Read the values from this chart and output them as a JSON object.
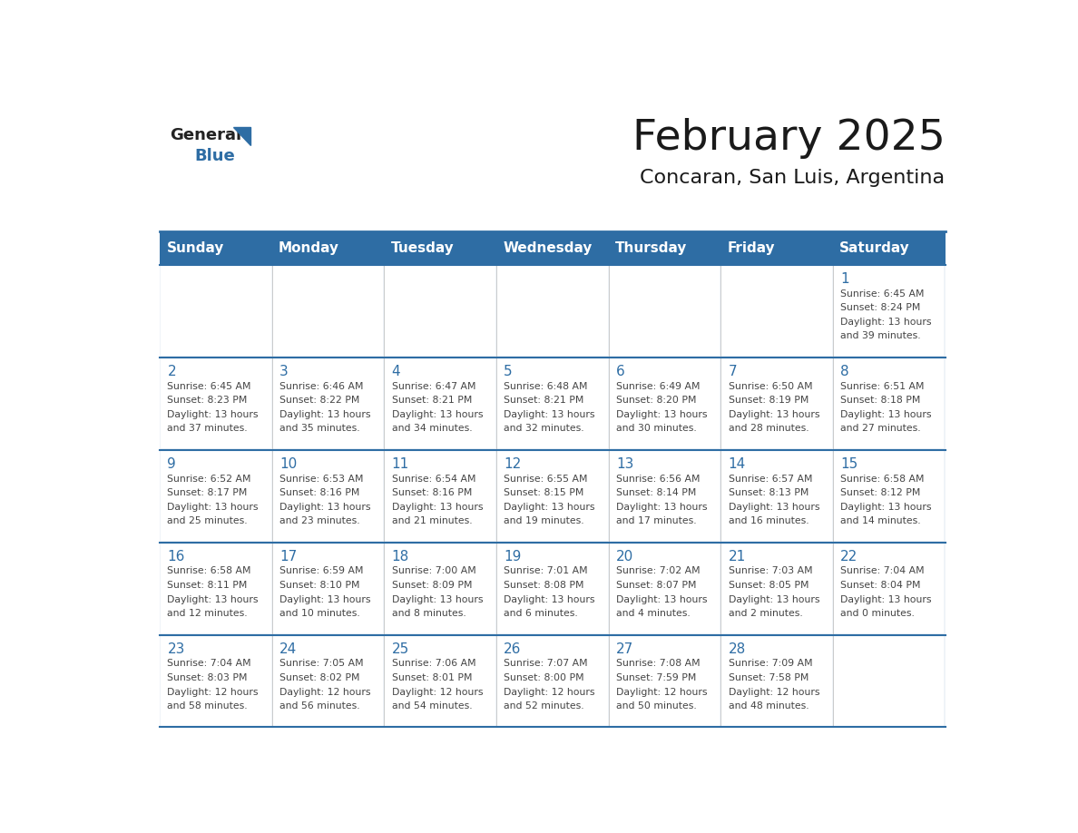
{
  "title": "February 2025",
  "subtitle": "Concaran, San Luis, Argentina",
  "days_of_week": [
    "Sunday",
    "Monday",
    "Tuesday",
    "Wednesday",
    "Thursday",
    "Friday",
    "Saturday"
  ],
  "header_bg": "#2e6da4",
  "header_text": "#ffffff",
  "border_color": "#2e6da4",
  "text_color": "#444444",
  "day_number_color": "#2e6da4",
  "logo_general_color": "#222222",
  "logo_blue_color": "#2e6da4",
  "calendar_data": [
    [
      null,
      null,
      null,
      null,
      null,
      null,
      {
        "day": 1,
        "sunrise": "6:45 AM",
        "sunset": "8:24 PM",
        "daylight": "13 hours and 39 minutes."
      }
    ],
    [
      {
        "day": 2,
        "sunrise": "6:45 AM",
        "sunset": "8:23 PM",
        "daylight": "13 hours and 37 minutes."
      },
      {
        "day": 3,
        "sunrise": "6:46 AM",
        "sunset": "8:22 PM",
        "daylight": "13 hours and 35 minutes."
      },
      {
        "day": 4,
        "sunrise": "6:47 AM",
        "sunset": "8:21 PM",
        "daylight": "13 hours and 34 minutes."
      },
      {
        "day": 5,
        "sunrise": "6:48 AM",
        "sunset": "8:21 PM",
        "daylight": "13 hours and 32 minutes."
      },
      {
        "day": 6,
        "sunrise": "6:49 AM",
        "sunset": "8:20 PM",
        "daylight": "13 hours and 30 minutes."
      },
      {
        "day": 7,
        "sunrise": "6:50 AM",
        "sunset": "8:19 PM",
        "daylight": "13 hours and 28 minutes."
      },
      {
        "day": 8,
        "sunrise": "6:51 AM",
        "sunset": "8:18 PM",
        "daylight": "13 hours and 27 minutes."
      }
    ],
    [
      {
        "day": 9,
        "sunrise": "6:52 AM",
        "sunset": "8:17 PM",
        "daylight": "13 hours and 25 minutes."
      },
      {
        "day": 10,
        "sunrise": "6:53 AM",
        "sunset": "8:16 PM",
        "daylight": "13 hours and 23 minutes."
      },
      {
        "day": 11,
        "sunrise": "6:54 AM",
        "sunset": "8:16 PM",
        "daylight": "13 hours and 21 minutes."
      },
      {
        "day": 12,
        "sunrise": "6:55 AM",
        "sunset": "8:15 PM",
        "daylight": "13 hours and 19 minutes."
      },
      {
        "day": 13,
        "sunrise": "6:56 AM",
        "sunset": "8:14 PM",
        "daylight": "13 hours and 17 minutes."
      },
      {
        "day": 14,
        "sunrise": "6:57 AM",
        "sunset": "8:13 PM",
        "daylight": "13 hours and 16 minutes."
      },
      {
        "day": 15,
        "sunrise": "6:58 AM",
        "sunset": "8:12 PM",
        "daylight": "13 hours and 14 minutes."
      }
    ],
    [
      {
        "day": 16,
        "sunrise": "6:58 AM",
        "sunset": "8:11 PM",
        "daylight": "13 hours and 12 minutes."
      },
      {
        "day": 17,
        "sunrise": "6:59 AM",
        "sunset": "8:10 PM",
        "daylight": "13 hours and 10 minutes."
      },
      {
        "day": 18,
        "sunrise": "7:00 AM",
        "sunset": "8:09 PM",
        "daylight": "13 hours and 8 minutes."
      },
      {
        "day": 19,
        "sunrise": "7:01 AM",
        "sunset": "8:08 PM",
        "daylight": "13 hours and 6 minutes."
      },
      {
        "day": 20,
        "sunrise": "7:02 AM",
        "sunset": "8:07 PM",
        "daylight": "13 hours and 4 minutes."
      },
      {
        "day": 21,
        "sunrise": "7:03 AM",
        "sunset": "8:05 PM",
        "daylight": "13 hours and 2 minutes."
      },
      {
        "day": 22,
        "sunrise": "7:04 AM",
        "sunset": "8:04 PM",
        "daylight": "13 hours and 0 minutes."
      }
    ],
    [
      {
        "day": 23,
        "sunrise": "7:04 AM",
        "sunset": "8:03 PM",
        "daylight": "12 hours and 58 minutes."
      },
      {
        "day": 24,
        "sunrise": "7:05 AM",
        "sunset": "8:02 PM",
        "daylight": "12 hours and 56 minutes."
      },
      {
        "day": 25,
        "sunrise": "7:06 AM",
        "sunset": "8:01 PM",
        "daylight": "12 hours and 54 minutes."
      },
      {
        "day": 26,
        "sunrise": "7:07 AM",
        "sunset": "8:00 PM",
        "daylight": "12 hours and 52 minutes."
      },
      {
        "day": 27,
        "sunrise": "7:08 AM",
        "sunset": "7:59 PM",
        "daylight": "12 hours and 50 minutes."
      },
      {
        "day": 28,
        "sunrise": "7:09 AM",
        "sunset": "7:58 PM",
        "daylight": "12 hours and 48 minutes."
      },
      null
    ]
  ]
}
